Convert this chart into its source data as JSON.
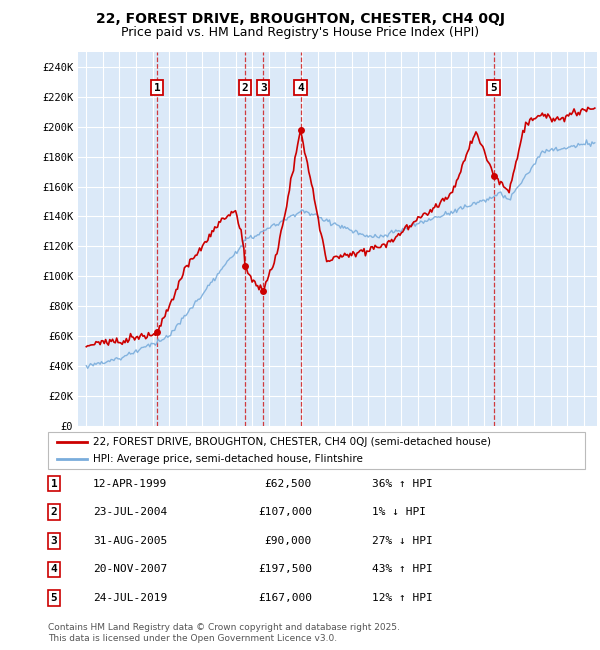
{
  "title_line1": "22, FOREST DRIVE, BROUGHTON, CHESTER, CH4 0QJ",
  "title_line2": "Price paid vs. HM Land Registry's House Price Index (HPI)",
  "ylim": [
    0,
    250000
  ],
  "yticks": [
    0,
    20000,
    40000,
    60000,
    80000,
    100000,
    120000,
    140000,
    160000,
    180000,
    200000,
    220000,
    240000
  ],
  "ytick_labels": [
    "£0",
    "£20K",
    "£40K",
    "£60K",
    "£80K",
    "£100K",
    "£120K",
    "£140K",
    "£160K",
    "£180K",
    "£200K",
    "£220K",
    "£240K"
  ],
  "hpi_color": "#7aaddc",
  "price_color": "#cc0000",
  "plot_bg": "#dbe9f8",
  "grid_color": "#ffffff",
  "transaction_dates": [
    1999.28,
    2004.56,
    2005.67,
    2007.92,
    2019.56
  ],
  "transaction_prices": [
    62500,
    107000,
    90000,
    197500,
    167000
  ],
  "transaction_labels": [
    "1",
    "2",
    "3",
    "4",
    "5"
  ],
  "legend_price_label": "22, FOREST DRIVE, BROUGHTON, CHESTER, CH4 0QJ (semi-detached house)",
  "legend_hpi_label": "HPI: Average price, semi-detached house, Flintshire",
  "table_data": [
    [
      "1",
      "12-APR-1999",
      "£62,500",
      "36% ↑ HPI"
    ],
    [
      "2",
      "23-JUL-2004",
      "£107,000",
      "1% ↓ HPI"
    ],
    [
      "3",
      "31-AUG-2005",
      "£90,000",
      "27% ↓ HPI"
    ],
    [
      "4",
      "20-NOV-2007",
      "£197,500",
      "43% ↑ HPI"
    ],
    [
      "5",
      "24-JUL-2019",
      "£167,000",
      "12% ↑ HPI"
    ]
  ],
  "footer_text": "Contains HM Land Registry data © Crown copyright and database right 2025.\nThis data is licensed under the Open Government Licence v3.0.",
  "xmin": 1994.5,
  "xmax": 2025.8
}
